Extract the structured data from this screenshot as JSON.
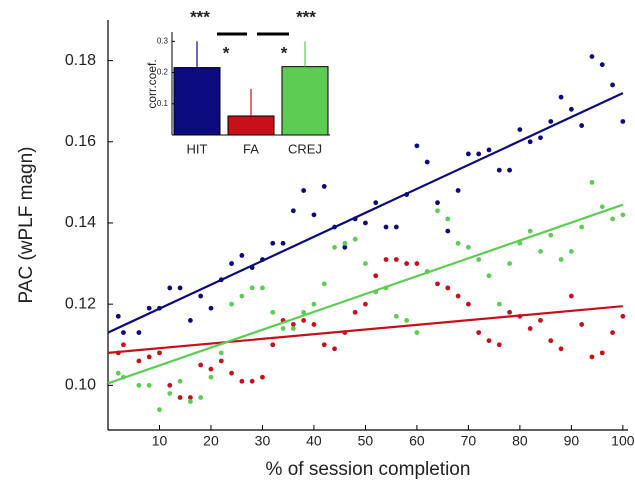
{
  "chart_data": [
    {
      "type": "scatter",
      "x_label": "% of session completion",
      "y_label": "PAC (wPLF magn)",
      "xlim": [
        0,
        101
      ],
      "ylim": [
        0.089,
        0.19
      ],
      "xticks": [
        10,
        20,
        30,
        40,
        50,
        60,
        70,
        80,
        90,
        100
      ],
      "yticks": [
        {
          "value": 0.1,
          "label": "0.10"
        },
        0.12,
        0.14,
        0.16,
        0.18
      ],
      "x": [
        2,
        3,
        6,
        8,
        10,
        12,
        14,
        16,
        18,
        20,
        22,
        24,
        26,
        28,
        30,
        32,
        34,
        36,
        38,
        40,
        42,
        44,
        46,
        48,
        50,
        52,
        54,
        56,
        58,
        60,
        62,
        64,
        66,
        68,
        70,
        72,
        74,
        76,
        78,
        80,
        82,
        84,
        86,
        88,
        90,
        92,
        94,
        96,
        98,
        100
      ],
      "series": [
        {
          "color": "#0b0b7d",
          "values": [
            0.117,
            0.113,
            0.113,
            0.119,
            0.119,
            0.124,
            0.124,
            0.116,
            0.122,
            0.119,
            0.126,
            0.13,
            0.132,
            0.129,
            0.131,
            0.135,
            0.135,
            0.143,
            0.148,
            0.142,
            0.149,
            0.139,
            0.134,
            0.141,
            0.14,
            0.145,
            0.139,
            0.139,
            0.147,
            0.159,
            0.155,
            0.145,
            0.138,
            0.148,
            0.157,
            0.157,
            0.158,
            0.153,
            0.153,
            0.163,
            0.16,
            0.161,
            0.165,
            0.171,
            0.168,
            0.164,
            0.181,
            0.179,
            0.174,
            0.165
          ],
          "fit": {
            "x": [
              0,
              100
            ],
            "values": [
              0.113,
              0.172
            ]
          }
        },
        {
          "color": "#c8101a",
          "values": [
            0.108,
            0.11,
            0.106,
            0.107,
            0.108,
            0.1,
            0.097,
            0.097,
            0.105,
            0.104,
            0.106,
            0.103,
            0.101,
            0.101,
            0.102,
            0.11,
            0.116,
            0.115,
            0.116,
            0.115,
            0.11,
            0.109,
            0.113,
            0.118,
            0.12,
            0.127,
            0.131,
            0.131,
            0.13,
            0.13,
            0.128,
            0.125,
            0.124,
            0.122,
            0.12,
            0.113,
            0.111,
            0.11,
            0.118,
            0.117,
            0.114,
            0.116,
            0.111,
            0.109,
            0.122,
            0.115,
            0.107,
            0.108,
            0.113,
            0.117
          ],
          "fit": {
            "x": [
              0,
              100
            ],
            "values": [
              0.108,
              0.1195
            ]
          }
        },
        {
          "color": "#5ccd52",
          "values": [
            0.103,
            0.102,
            0.1,
            0.1,
            0.094,
            0.098,
            0.101,
            0.096,
            0.097,
            0.102,
            0.108,
            0.12,
            0.122,
            0.124,
            0.124,
            0.118,
            0.114,
            0.114,
            0.118,
            0.12,
            0.125,
            0.134,
            0.135,
            0.136,
            0.13,
            0.123,
            0.124,
            0.117,
            0.116,
            0.113,
            0.128,
            0.143,
            0.141,
            0.135,
            0.134,
            0.131,
            0.127,
            0.12,
            0.13,
            0.135,
            0.138,
            0.133,
            0.137,
            0.131,
            0.133,
            0.139,
            0.15,
            0.144,
            0.141,
            0.142
          ],
          "fit": {
            "x": [
              0,
              100
            ],
            "values": [
              0.1005,
              0.1445
            ]
          }
        }
      ]
    },
    {
      "type": "bar",
      "y_label": "corr.coef.",
      "categories": [
        "HIT",
        "FA",
        "CREJ"
      ],
      "values": [
        0.216,
        0.061,
        0.219
      ],
      "errors": [
        0.084,
        0.087,
        0.081
      ],
      "colors": [
        "#0b0b7d",
        "#c8101a",
        "#5ccd52"
      ],
      "ylim": [
        0,
        0.33
      ],
      "yticks": [
        0.1,
        0.2,
        0.3
      ],
      "annotations": [
        "***",
        "*",
        "***",
        "*"
      ]
    }
  ]
}
